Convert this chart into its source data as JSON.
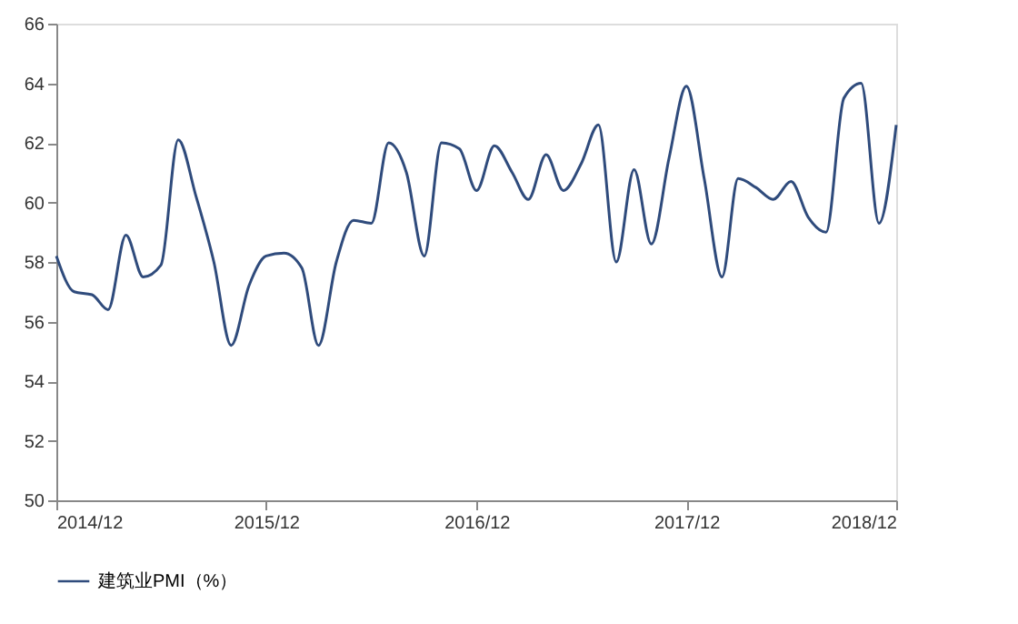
{
  "chart_data": {
    "type": "line",
    "x": [
      "2014-12",
      "2015-01",
      "2015-02",
      "2015-03",
      "2015-04",
      "2015-05",
      "2015-06",
      "2015-07",
      "2015-08",
      "2015-09",
      "2015-10",
      "2015-11",
      "2015-12",
      "2016-01",
      "2016-02",
      "2016-03",
      "2016-04",
      "2016-05",
      "2016-06",
      "2016-07",
      "2016-08",
      "2016-09",
      "2016-10",
      "2016-11",
      "2016-12",
      "2017-01",
      "2017-02",
      "2017-03",
      "2017-04",
      "2017-05",
      "2017-06",
      "2017-07",
      "2017-08",
      "2017-09",
      "2017-10",
      "2017-11",
      "2017-12",
      "2018-01",
      "2018-02",
      "2018-03",
      "2018-04",
      "2018-05",
      "2018-06",
      "2018-07",
      "2018-08",
      "2018-09",
      "2018-10",
      "2018-11",
      "2018-12"
    ],
    "series": [
      {
        "name": "建筑业PMI（%）",
        "color": "#2f4b7c",
        "values": [
          58.2,
          57.0,
          56.9,
          56.4,
          58.9,
          57.5,
          57.9,
          62.1,
          60.2,
          58.0,
          55.2,
          57.2,
          58.2,
          58.3,
          57.8,
          55.2,
          58.0,
          59.4,
          59.3,
          62.0,
          61.0,
          58.2,
          62.0,
          61.8,
          60.4,
          61.9,
          61.0,
          60.1,
          61.6,
          60.4,
          61.3,
          62.6,
          58.0,
          61.1,
          58.6,
          61.5,
          63.9,
          60.8,
          57.5,
          60.8,
          60.5,
          60.1,
          60.7,
          59.5,
          59.0,
          63.5,
          64.0,
          59.3,
          62.6
        ]
      }
    ],
    "xlim": [
      "2014-12",
      "2018-12"
    ],
    "xticks": [
      {
        "value": "2014-12",
        "label": "2014/12"
      },
      {
        "value": "2015-12",
        "label": "2015/12"
      },
      {
        "value": "2016-12",
        "label": "2016/12"
      },
      {
        "value": "2017-12",
        "label": "2017/12"
      },
      {
        "value": "2018-12",
        "label": "2018/12"
      }
    ],
    "ylim": [
      50,
      66
    ],
    "yticks": [
      50,
      52,
      54,
      56,
      58,
      60,
      62,
      64,
      66
    ],
    "legend": "bottom",
    "grid": false
  }
}
